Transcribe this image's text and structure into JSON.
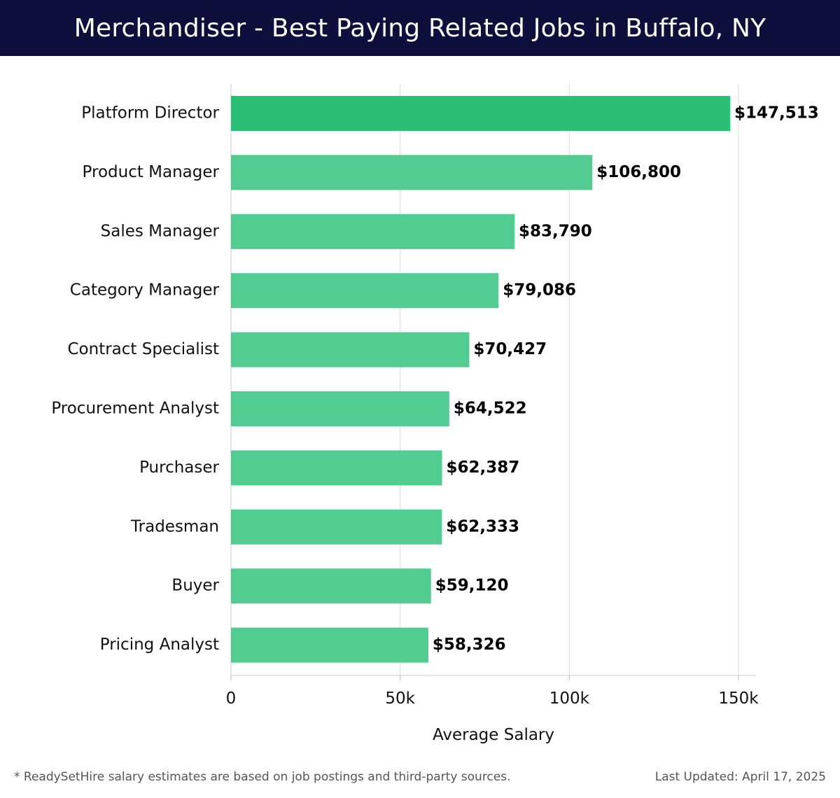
{
  "header": {
    "title": "Merchandiser - Best Paying Related Jobs in Buffalo, NY"
  },
  "footer": {
    "note": "* ReadySetHire salary estimates are based on job postings and third-party sources.",
    "updated": "Last Updated: April 17, 2025"
  },
  "chart_data": {
    "type": "bar",
    "orientation": "horizontal",
    "categories": [
      "Platform Director",
      "Product Manager",
      "Sales Manager",
      "Category Manager",
      "Contract Specialist",
      "Procurement Analyst",
      "Purchaser",
      "Tradesman",
      "Buyer",
      "Pricing Analyst"
    ],
    "values": [
      147513,
      106800,
      83790,
      79086,
      70427,
      64522,
      62387,
      62333,
      59120,
      58326
    ],
    "value_labels": [
      "$147,513",
      "$106,800",
      "$83,790",
      "$79,086",
      "$70,427",
      "$64,522",
      "$62,387",
      "$62,333",
      "$59,120",
      "$58,326"
    ],
    "xlabel": "Average Salary",
    "ylabel": "",
    "xlim": [
      0,
      155000
    ],
    "ticks": [
      0,
      50000,
      100000,
      150000
    ],
    "tick_labels": [
      "0",
      "50k",
      "100k",
      "150k"
    ],
    "grid": true,
    "colors": {
      "top_bar": "#2bbf76",
      "bars": "#52cc90",
      "grid": "#dddddd",
      "text": "#111111"
    }
  }
}
